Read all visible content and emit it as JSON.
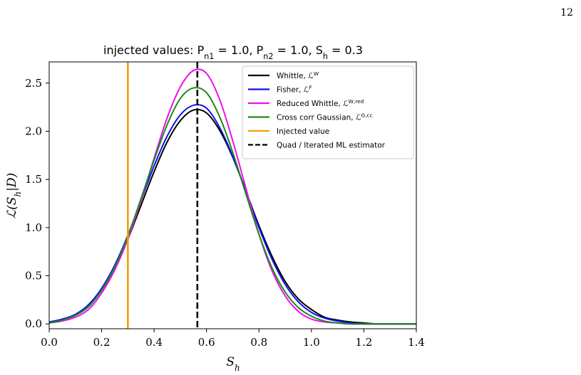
{
  "page": {
    "number": "12"
  },
  "chart_data": {
    "type": "line",
    "title": "injected values: P_{n_1} = 1.0, P_{n_2} = 1.0, S_h = 0.3",
    "xlabel": "S_h",
    "ylabel": "ℒ(S_h|D)",
    "xlim": [
      0.0,
      1.4
    ],
    "ylim": [
      -0.05,
      2.72
    ],
    "xticks": [
      0.0,
      0.2,
      0.4,
      0.6,
      0.8,
      1.0,
      1.2,
      1.4
    ],
    "xtick_labels": [
      "0.0",
      "0.2",
      "0.4",
      "0.6",
      "0.8",
      "1.0",
      "1.2",
      "1.4"
    ],
    "yticks": [
      0.0,
      0.5,
      1.0,
      1.5,
      2.0,
      2.5
    ],
    "ytick_labels": [
      "0.0",
      "0.5",
      "1.0",
      "1.5",
      "2.0",
      "2.5"
    ],
    "grid": false,
    "legend_position": "top-right",
    "x": [
      0.0,
      0.05,
      0.1,
      0.15,
      0.2,
      0.25,
      0.3,
      0.35,
      0.4,
      0.45,
      0.5,
      0.55,
      0.6,
      0.65,
      0.7,
      0.75,
      0.8,
      0.85,
      0.9,
      0.95,
      1.0,
      1.05,
      1.1,
      1.15,
      1.2,
      1.25,
      1.3,
      1.35,
      1.4
    ],
    "series": [
      {
        "name": "Whittle, ℒ^W",
        "color": "#000000",
        "values": [
          0.02,
          0.04,
          0.09,
          0.18,
          0.35,
          0.58,
          0.88,
          1.23,
          1.58,
          1.89,
          2.11,
          2.22,
          2.19,
          2.01,
          1.73,
          1.38,
          1.02,
          0.7,
          0.44,
          0.26,
          0.15,
          0.07,
          0.04,
          0.02,
          0.01,
          0.0,
          0.0,
          0.0,
          0.0
        ]
      },
      {
        "name": "Fisher, ℒ^F",
        "color": "#1010ee",
        "values": [
          0.02,
          0.05,
          0.1,
          0.2,
          0.37,
          0.61,
          0.92,
          1.28,
          1.64,
          1.95,
          2.17,
          2.27,
          2.24,
          2.04,
          1.74,
          1.38,
          1.0,
          0.67,
          0.41,
          0.23,
          0.12,
          0.06,
          0.03,
          0.01,
          0.0,
          0.0,
          0.0,
          0.0,
          0.0
        ]
      },
      {
        "name": "Reduced Whittle, ℒ^{W,red}",
        "color": "#ee10ee",
        "values": [
          0.01,
          0.03,
          0.07,
          0.15,
          0.32,
          0.56,
          0.88,
          1.28,
          1.72,
          2.14,
          2.46,
          2.63,
          2.6,
          2.33,
          1.9,
          1.41,
          0.93,
          0.55,
          0.29,
          0.13,
          0.05,
          0.02,
          0.01,
          0.0,
          0.0,
          0.0,
          0.0,
          0.0,
          0.0
        ]
      },
      {
        "name": "Cross corr Gaussian, ℒ^{G,cc}",
        "color": "#1a8a1a",
        "values": [
          0.01,
          0.04,
          0.09,
          0.18,
          0.35,
          0.59,
          0.91,
          1.3,
          1.7,
          2.07,
          2.34,
          2.45,
          2.4,
          2.15,
          1.78,
          1.35,
          0.93,
          0.58,
          0.33,
          0.17,
          0.08,
          0.03,
          0.01,
          0.0,
          0.0,
          0.0,
          0.0,
          0.0,
          0.0
        ]
      }
    ],
    "vlines": [
      {
        "name": "Injected value",
        "x": 0.3,
        "color": "#f5a000",
        "style": "solid"
      },
      {
        "name": "Quad / Iterated ML estimator",
        "x": 0.565,
        "color": "#000000",
        "style": "dashed"
      }
    ]
  }
}
